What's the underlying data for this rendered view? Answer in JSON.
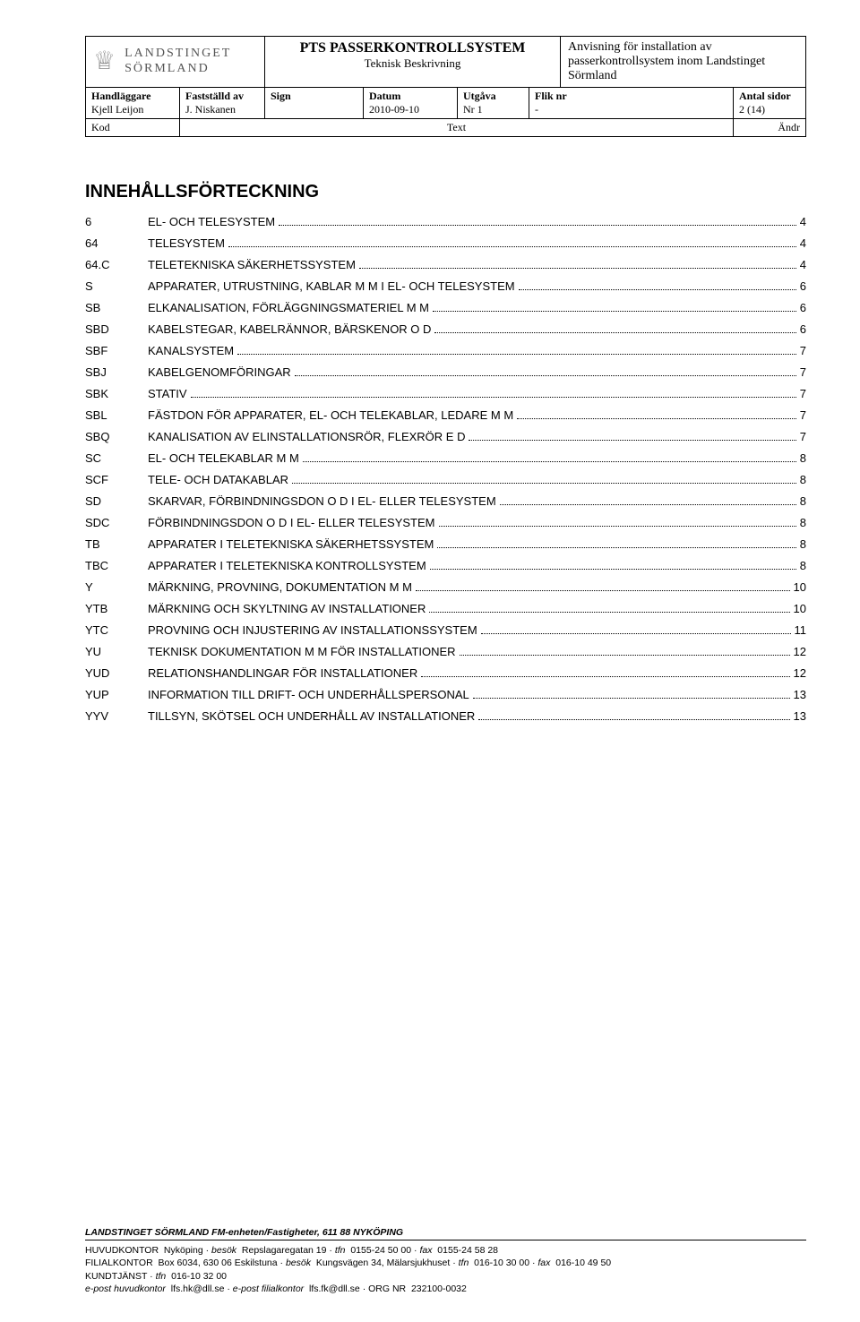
{
  "header": {
    "logo_line1": "LANDSTINGET",
    "logo_line2": "SÖRMLAND",
    "title_line1": "PTS PASSERKONTROLLSYSTEM",
    "title_line2": "Teknisk Beskrivning",
    "desc": "Anvisning för installation av passerkontrollsystem inom Landstinget Sörmland"
  },
  "meta": {
    "handlaggare_lbl": "Handläggare",
    "handlaggare_val": "Kjell Leijon",
    "faststalld_lbl": "Fastställd av",
    "faststalld_val": "J. Niskanen",
    "sign_lbl": "Sign",
    "sign_val": "",
    "datum_lbl": "Datum",
    "datum_val": "2010-09-10",
    "utgava_lbl": "Utgåva",
    "utgava_val": "Nr 1",
    "flik_lbl": "Flik nr",
    "flik_val": "-",
    "antal_lbl": "Antal sidor",
    "antal_val": "2 (14)",
    "kod_lbl": "Kod",
    "text_lbl": "Text",
    "andr_lbl": "Ändr"
  },
  "toc_title": "INNEHÅLLSFÖRTECKNING",
  "toc": [
    {
      "code": "6",
      "label": "EL- OCH TELESYSTEM",
      "page": "4"
    },
    {
      "code": "64",
      "label": "TELESYSTEM",
      "page": "4"
    },
    {
      "code": "64.C",
      "label": "TELETEKNISKA SÄKERHETSSYSTEM",
      "page": "4"
    },
    {
      "code": "S",
      "label": "APPARATER, UTRUSTNING, KABLAR M M I EL- OCH TELESYSTEM",
      "page": "6"
    },
    {
      "code": "SB",
      "label": "ELKANALISATION, FÖRLÄGGNINGSMATERIEL M M",
      "page": "6"
    },
    {
      "code": "SBD",
      "label": "KABELSTEGAR, KABELRÄNNOR, BÄRSKENOR O D",
      "page": "6"
    },
    {
      "code": "SBF",
      "label": "KANALSYSTEM",
      "page": "7"
    },
    {
      "code": "SBJ",
      "label": "KABELGENOMFÖRINGAR",
      "page": "7"
    },
    {
      "code": "SBK",
      "label": "STATIV",
      "page": "7"
    },
    {
      "code": "SBL",
      "label": "FÄSTDON FÖR APPARATER, EL- OCH TELEKABLAR, LEDARE M M",
      "page": "7"
    },
    {
      "code": "SBQ",
      "label": "KANALISATION AV ELINSTALLATIONSRÖR, FLEXRÖR E D",
      "page": "7"
    },
    {
      "code": "SC",
      "label": "EL- OCH TELEKABLAR M M",
      "page": "8"
    },
    {
      "code": "SCF",
      "label": "TELE- OCH DATAKABLAR",
      "page": "8"
    },
    {
      "code": "SD",
      "label": "SKARVAR, FÖRBINDNINGSDON O D I EL- ELLER TELESYSTEM",
      "page": "8"
    },
    {
      "code": "SDC",
      "label": "FÖRBINDNINGSDON O D I EL- ELLER TELESYSTEM",
      "page": "8"
    },
    {
      "code": "TB",
      "label": "APPARATER I TELETEKNISKA SÄKERHETSSYSTEM",
      "page": "8"
    },
    {
      "code": "TBC",
      "label": "APPARATER I TELETEKNISKA KONTROLLSYSTEM",
      "page": "8"
    },
    {
      "code": "Y",
      "label": "MÄRKNING, PROVNING, DOKUMENTATION M M",
      "page": "10"
    },
    {
      "code": "YTB",
      "label": "MÄRKNING OCH SKYLTNING AV INSTALLATIONER",
      "page": "10"
    },
    {
      "code": "YTC",
      "label": "PROVNING OCH INJUSTERING AV INSTALLATIONSSYSTEM",
      "page": "11"
    },
    {
      "code": "YU",
      "label": "TEKNISK DOKUMENTATION M M FÖR INSTALLATIONER",
      "page": "12"
    },
    {
      "code": "YUD",
      "label": "RELATIONSHANDLINGAR FÖR INSTALLATIONER",
      "page": "12"
    },
    {
      "code": "YUP",
      "label": "INFORMATION TILL DRIFT- OCH UNDERHÅLLSPERSONAL",
      "page": "13"
    },
    {
      "code": "YYV",
      "label": "TILLSYN, SKÖTSEL OCH UNDERHÅLL AV INSTALLATIONER",
      "page": "13"
    }
  ],
  "footer": {
    "org": "LANDSTINGET SÖRMLAND FM-enheten/Fastigheter,  611 88 NYKÖPING",
    "hk_lbl": "HUVUDKONTOR",
    "hk_city": "Nyköping",
    "hk_besok_lbl": "besök",
    "hk_besok": "Repslagaregatan 19",
    "hk_tfn_lbl": "tfn",
    "hk_tfn": "0155-24 50 00",
    "hk_fax_lbl": "fax",
    "hk_fax": "0155-24 58 28",
    "fk_lbl": "FILIALKONTOR",
    "fk_addr": "Box  6034, 630 06 Eskilstuna",
    "fk_besok_lbl": "besök",
    "fk_besok": "Kungsvägen 34, Mälarsjukhuset",
    "fk_tfn_lbl": "tfn",
    "fk_tfn": "016-10 30 00",
    "fk_fax_lbl": "fax",
    "fk_fax": "016-10 49 50",
    "kt_lbl": "KUNDTJÄNST",
    "kt_tfn_lbl": "tfn",
    "kt_tfn": "016-10 32 00",
    "ep_hk_lbl": "e-post huvudkontor",
    "ep_hk": "lfs.hk@dll.se",
    "ep_fk_lbl": "e-post filialkontor",
    "ep_fk": "lfs.fk@dll.se",
    "org_lbl": "ORG NR",
    "org_nr": "232100-0032"
  }
}
